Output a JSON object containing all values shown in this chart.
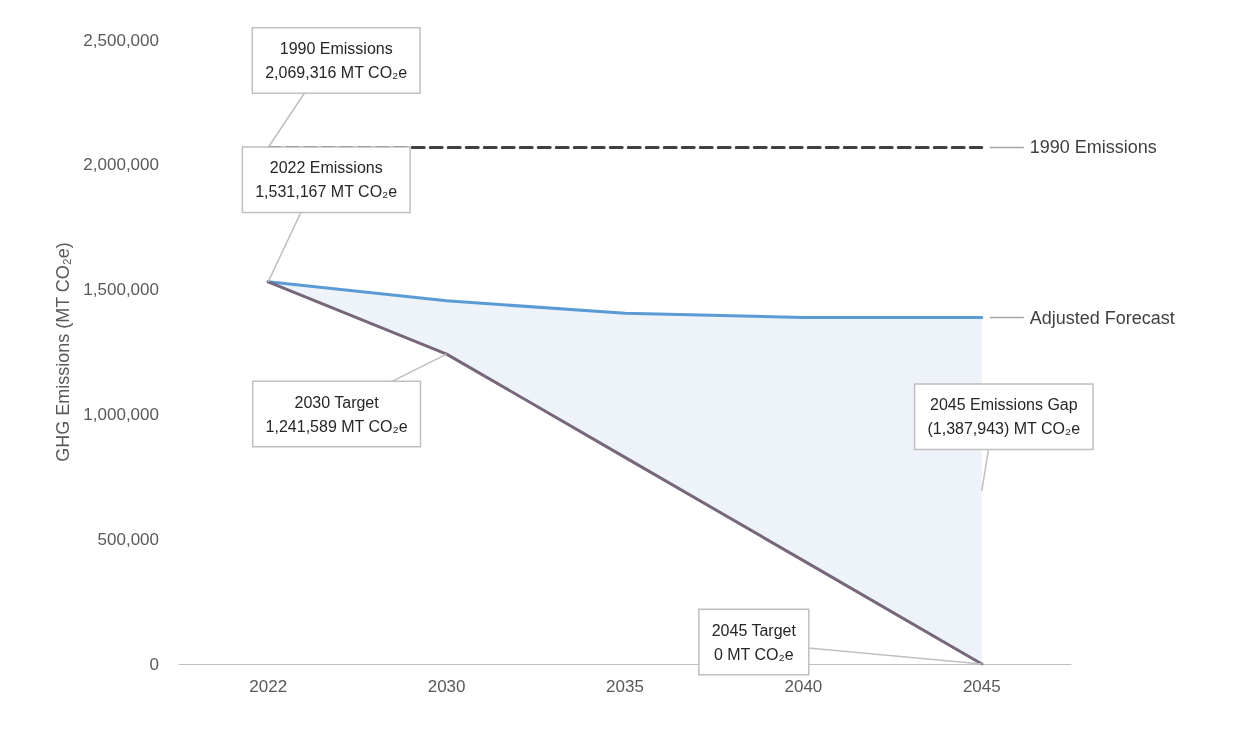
{
  "chart_data": {
    "type": "line",
    "ylabel": "GHG Emissions (MT CO₂e)",
    "categories": [
      "2022",
      "2030",
      "2035",
      "2040",
      "2045"
    ],
    "series": [
      {
        "name": "1990 Emissions",
        "color": "#404040",
        "line_style": "dashed",
        "values": [
          2069316,
          2069316,
          2069316,
          2069316,
          2069316
        ]
      },
      {
        "name": "Adjusted Forecast",
        "color": "#5b9bd5",
        "values": [
          1531167,
          1455000,
          1405000,
          1388000,
          1387943
        ],
        "lower": [
          1531167,
          1241589,
          828000,
          414000,
          0
        ],
        "upper": [
          1531167,
          1455000,
          1405000,
          1388000,
          1387943
        ]
      },
      {
        "color": "#76677a",
        "values": [
          1531167,
          1241589,
          828000,
          414000,
          0
        ]
      }
    ],
    "ylim": [
      0,
      2500000
    ],
    "yticks": [
      0,
      {
        "value": 500000,
        "label": "500,000"
      },
      {
        "value": 1000000,
        "label": "1,000,000"
      },
      {
        "value": 1500000,
        "label": "1,500,000"
      },
      {
        "value": 2000000,
        "label": "2,000,000"
      },
      {
        "value": 2500000,
        "label": "2,500,000"
      }
    ],
    "grid": false,
    "legend": false,
    "marker": "none",
    "annotations": [
      {
        "text": "1990 Emissions\n2,069,316 MT CO₂e",
        "x": "2022",
        "y": 2069316
      },
      {
        "text": "2022 Emissions\n1,531,167 MT CO₂e",
        "x": "2022",
        "y": 1531167
      },
      {
        "text": "2030 Target\n1,241,589 MT CO₂e",
        "x": "2030",
        "y": 1241589
      },
      {
        "text": "2045 Emissions Gap\n(1,387,943) MT CO₂e",
        "x": "2045",
        "y": 694000
      },
      {
        "text": "2045 Target\n0 MT CO₂e",
        "x": "2045",
        "y": 0
      }
    ]
  }
}
